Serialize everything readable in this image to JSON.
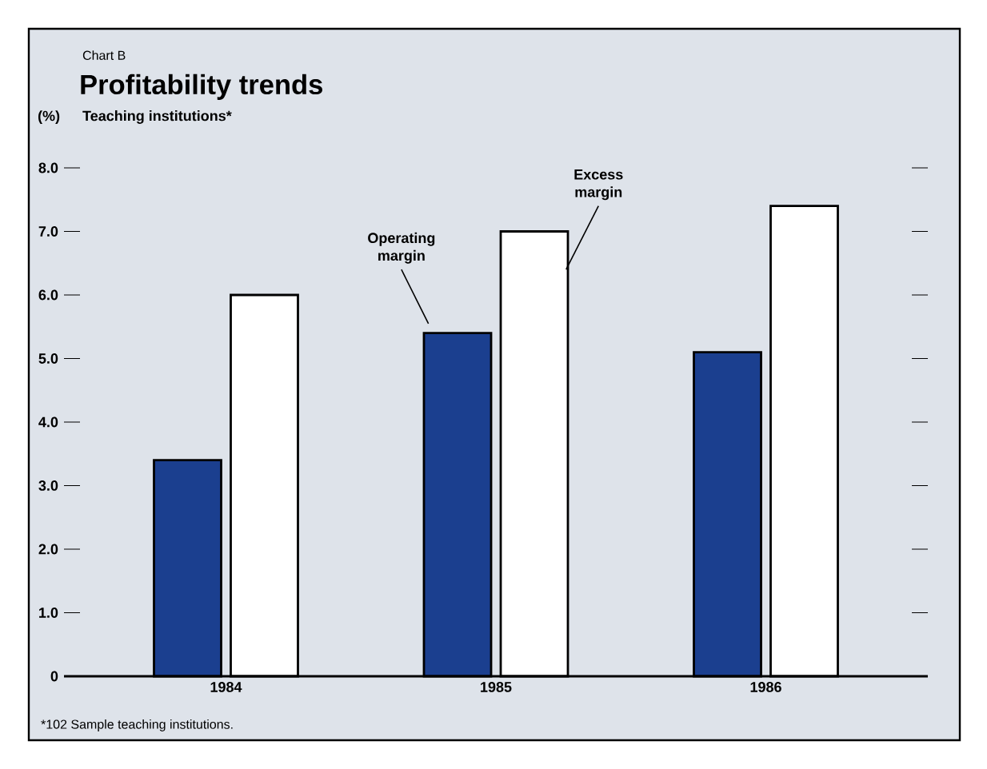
{
  "chart_data": {
    "type": "bar",
    "title": "Profitability trends",
    "subtitle": "Teaching institutions*",
    "ylabel": "(%)",
    "annotations": [
      "Chart B",
      "*102 Sample teaching institutions."
    ],
    "categories": [
      "1984",
      "1985",
      "1986"
    ],
    "series": [
      {
        "name": "Operating margin",
        "color": "#1b3f8f",
        "values": [
          3.4,
          5.4,
          5.1
        ]
      },
      {
        "name": "Excess margin",
        "color": "#ffffff",
        "values": [
          6.0,
          7.0,
          7.4
        ]
      }
    ],
    "ylim": [
      0,
      8
    ],
    "yticks": [
      0,
      {
        "value": 1,
        "label": "1.0"
      },
      {
        "value": 2,
        "label": "2.0"
      },
      {
        "value": 3,
        "label": "3.0"
      },
      {
        "value": 4,
        "label": "4.0"
      },
      {
        "value": 5,
        "label": "5.0"
      },
      {
        "value": 6,
        "label": "6.0"
      },
      {
        "value": 7,
        "label": "7.0"
      },
      {
        "value": 8,
        "label": "8.0"
      }
    ],
    "grid": false,
    "legend": false
  }
}
